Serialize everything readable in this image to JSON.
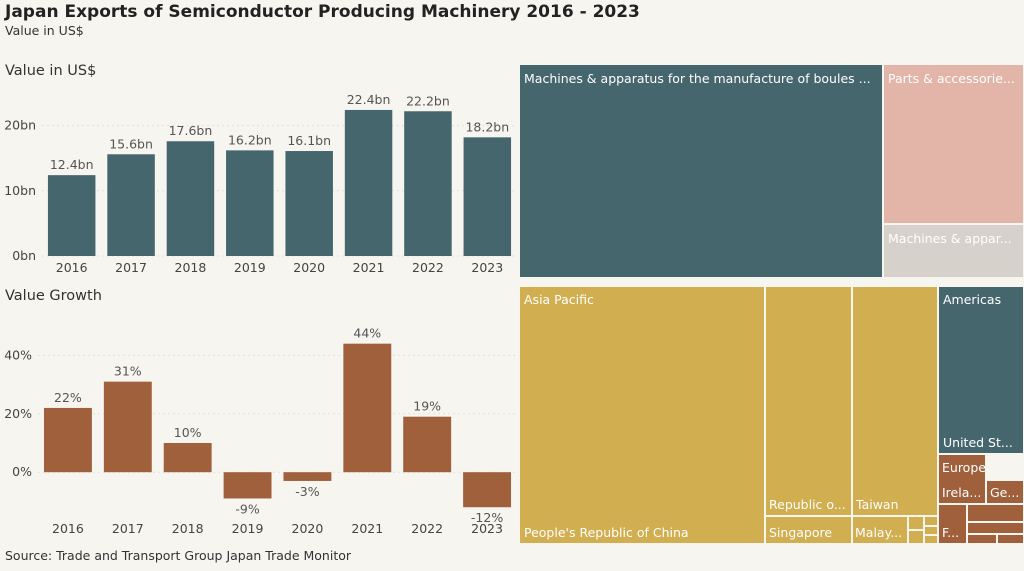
{
  "header": {
    "title": "Japan Exports of Semiconductor Producing Machinery 2016 - 2023",
    "subtitle": "Value in US$"
  },
  "sections": {
    "value": "Value in US$",
    "growth": "Value Growth"
  },
  "source": "Source: Trade and Transport Group Japan Trade Monitor",
  "colors": {
    "teal": "#46666e",
    "rust": "#a0603c",
    "pink": "#e3b5a8",
    "grey": "#d6d1ca",
    "gold": "#d1ae4f",
    "background": "#f7f5f0"
  },
  "chart_data": [
    {
      "type": "bar",
      "categories": [
        "2016",
        "2017",
        "2018",
        "2019",
        "2020",
        "2021",
        "2022",
        "2023"
      ],
      "values": [
        12.4,
        15.6,
        17.6,
        16.2,
        16.1,
        22.4,
        22.2,
        18.2
      ],
      "data_labels": [
        "12.4bn",
        "15.6bn",
        "17.6bn",
        "16.2bn",
        "16.1bn",
        "22.4bn",
        "22.2bn",
        "18.2bn"
      ],
      "ylabel": "",
      "yticks": [
        0,
        10,
        20
      ],
      "ytick_labels": [
        "0bn",
        "10bn",
        "20bn"
      ],
      "ylim": [
        0,
        25
      ],
      "color": "#46666e",
      "grid": true
    },
    {
      "type": "bar",
      "categories": [
        "2016",
        "2017",
        "2018",
        "2019",
        "2020",
        "2021",
        "2022",
        "2023"
      ],
      "values": [
        22,
        31,
        10,
        -9,
        -3,
        44,
        19,
        -12
      ],
      "data_labels": [
        "22%",
        "31%",
        "10%",
        "-9%",
        "-3%",
        "44%",
        "19%",
        "-12%"
      ],
      "yticks": [
        0,
        20,
        40
      ],
      "ytick_labels": [
        "0%",
        "20%",
        "40%"
      ],
      "ylim": [
        -15,
        48
      ],
      "color": "#a0603c",
      "grid": true
    }
  ],
  "products_treemap": [
    {
      "label": "Machines & apparatus for the manufacture of boules ...",
      "color": "teal"
    },
    {
      "label": "Parts & accessorie...",
      "color": "pink"
    },
    {
      "label": "Machines & appar...",
      "color": "grey"
    }
  ],
  "markets_treemap": {
    "asia_pacific": "Asia Pacific",
    "china": "People's Republic of China",
    "korea": "Republic o...",
    "singapore": "Singapore",
    "taiwan": "Taiwan",
    "malaysia": "Malay...",
    "americas": "Americas",
    "united_states": "United St...",
    "europe": "Europe",
    "ireland": "Irela...",
    "germany": "Ge...",
    "france": "F..."
  }
}
